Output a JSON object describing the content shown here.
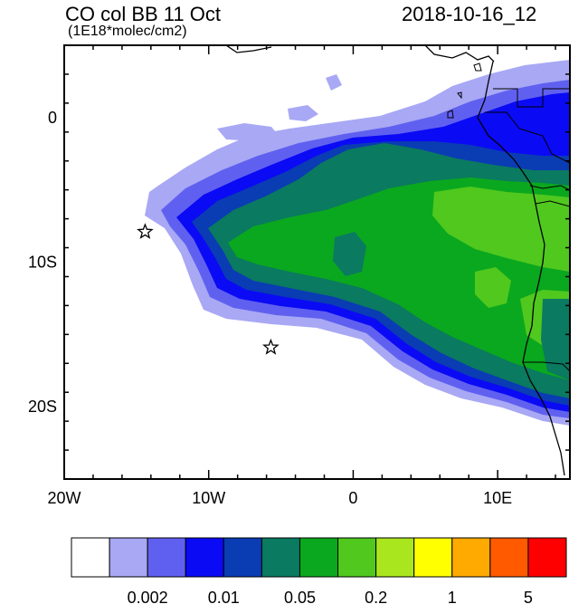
{
  "header": {
    "title": "CO col BB 11 Oct",
    "units": "(1E18*molec/cm2)",
    "datetime": "2018-10-16_12"
  },
  "map": {
    "lon_range": [
      -20,
      15
    ],
    "lat_range": [
      -25,
      5
    ],
    "x_ticks": [
      {
        "lon": -20,
        "label": "20W"
      },
      {
        "lon": -10,
        "label": "10W"
      },
      {
        "lon": 0,
        "label": "0"
      },
      {
        "lon": 10,
        "label": "10E"
      }
    ],
    "y_ticks": [
      {
        "lat": 0,
        "label": "0"
      },
      {
        "lat": -10,
        "label": "10S"
      },
      {
        "lat": -20,
        "label": "20S"
      }
    ],
    "stations": [
      {
        "name": "star-marker",
        "lon": -14.4,
        "lat": -7.9
      },
      {
        "name": "star-marker",
        "lon": -5.7,
        "lat": -15.9
      }
    ]
  },
  "colorbar": {
    "colors": [
      "#ffffff",
      "#a8a8f5",
      "#6060f0",
      "#0a0af5",
      "#0a3cb4",
      "#0a7a60",
      "#0aa81e",
      "#50c81e",
      "#aae61e",
      "#ffff00",
      "#ffaa00",
      "#ff5a00",
      "#ff0000"
    ],
    "labels": [
      "0.002",
      "0.01",
      "0.05",
      "0.2",
      "1",
      "5"
    ]
  }
}
